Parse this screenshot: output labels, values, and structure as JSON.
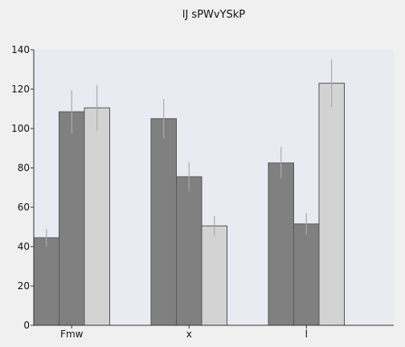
{
  "chart_data": {
    "type": "bar",
    "title": "lJ sPWvYSkP",
    "xlabel": "",
    "ylabel": "",
    "ylim": [
      0,
      140
    ],
    "yticks": [
      0,
      20,
      40,
      60,
      80,
      100,
      120,
      140
    ],
    "grid": false,
    "categories": [
      "Fmw",
      "x",
      "l"
    ],
    "series": [
      {
        "values": [
          44.5,
          105,
          82.5
        ],
        "errors": [
          4.5,
          10,
          8
        ],
        "color": "#808080"
      },
      {
        "values": [
          108.5,
          75.5,
          51.5
        ],
        "errors": [
          11,
          7.5,
          5.5
        ],
        "color": "#808080"
      },
      {
        "values": [
          110.5,
          50.5,
          123
        ],
        "errors": [
          11.5,
          5,
          12
        ],
        "color": "#d3d3d3"
      }
    ],
    "plot_background": "#eaeaf2",
    "bar_edge_color": "#555555",
    "error_bar_color": "#a9a9a9"
  }
}
